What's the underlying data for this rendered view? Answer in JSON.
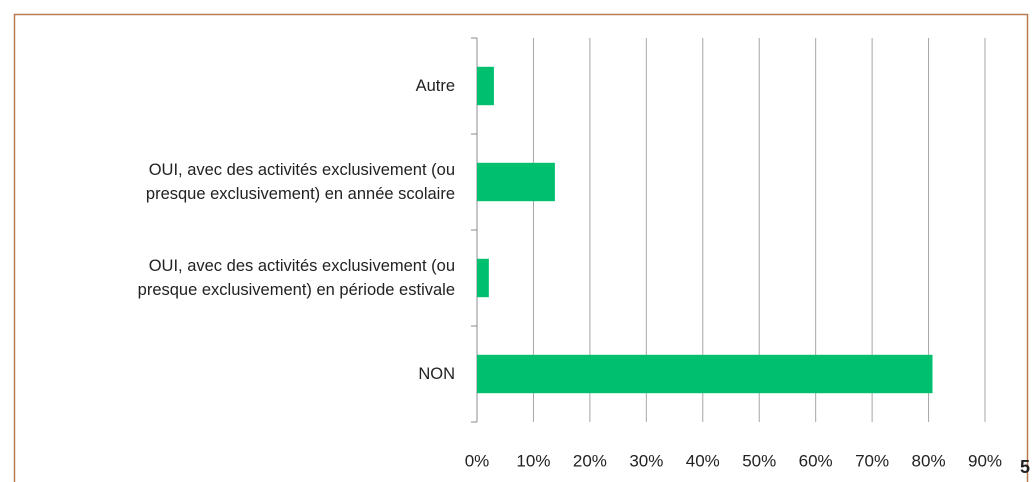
{
  "chart_data": {
    "type": "bar",
    "orientation": "horizontal",
    "categories": [
      "Autre",
      "OUI, avec des activités exclusivement (ou\npresque exclusivement) en année scolaire",
      "OUI, avec des activités exclusivement (ou\npresque exclusivement) en période estivale",
      "NON"
    ],
    "values": [
      3.0,
      13.8,
      2.1,
      80.7
    ],
    "color": "#00c070",
    "xlim": [
      0,
      90
    ],
    "xticks": [
      {
        "value": 0,
        "label": "0%"
      },
      {
        "value": 10,
        "label": "10%"
      },
      {
        "value": 20,
        "label": "20%"
      },
      {
        "value": 30,
        "label": "30%"
      },
      {
        "value": 40,
        "label": "40%"
      },
      {
        "value": 50,
        "label": "50%"
      },
      {
        "value": 60,
        "label": "60%"
      },
      {
        "value": 70,
        "label": "70%"
      },
      {
        "value": 80,
        "label": "80%"
      },
      {
        "value": 90,
        "label": "90%"
      }
    ],
    "grid": true
  },
  "page_number": "5"
}
